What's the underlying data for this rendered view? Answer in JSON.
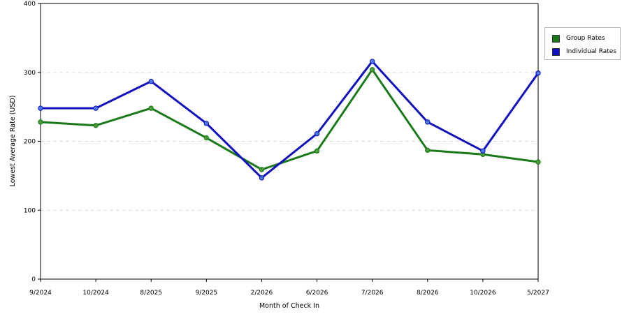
{
  "chart_data": {
    "type": "line",
    "title": "",
    "xlabel": "Month of Check In",
    "ylabel": "Lowest Average Rate (USD)",
    "ylim": [
      0,
      400
    ],
    "yticks": [
      0,
      100,
      200,
      300,
      400
    ],
    "grid": true,
    "legend_position": "right",
    "categories": [
      "9/2024",
      "10/2024",
      "8/2025",
      "9/2025",
      "2/2026",
      "6/2026",
      "7/2026",
      "8/2026",
      "10/2026",
      "5/2027"
    ],
    "series": [
      {
        "name": "Group Rates",
        "color": "#1a7a1a",
        "marker_color": "#4a9a3a",
        "values": [
          228,
          223,
          248,
          205,
          159,
          186,
          304,
          187,
          181,
          170
        ]
      },
      {
        "name": "Individual Rates",
        "color": "#1010c0",
        "marker_color": "#4a7ae0",
        "values": [
          248,
          248,
          287,
          226,
          147,
          211,
          316,
          228,
          186,
          299
        ]
      }
    ]
  }
}
